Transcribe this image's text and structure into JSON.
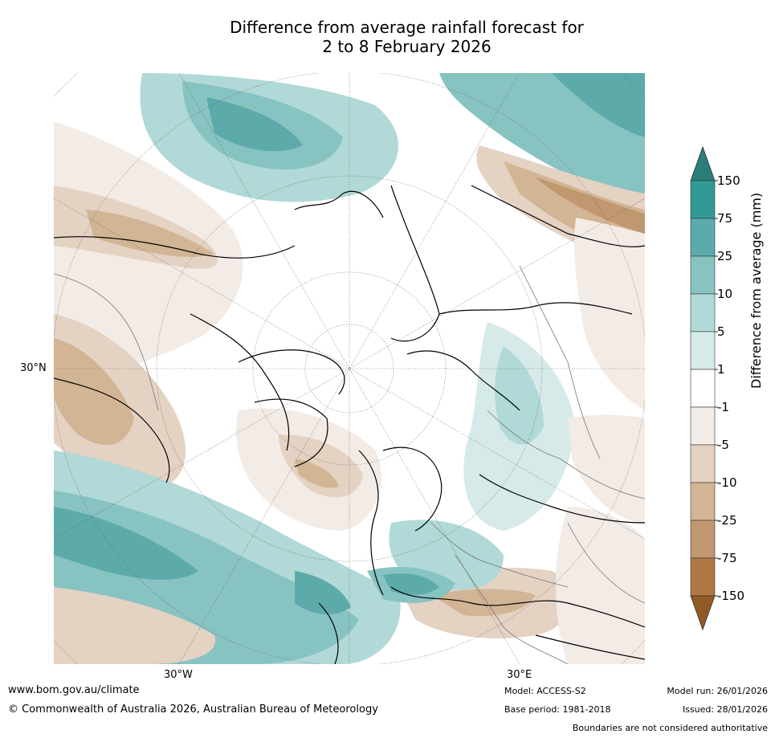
{
  "title_line1": "Difference from average rainfall forecast for",
  "title_line2": "2 to 8 February 2026",
  "map": {
    "lat_label": "30°N",
    "lon_labels": [
      "30°W",
      "30°E"
    ]
  },
  "colorbar": {
    "label": "Difference from average (mm)",
    "ticks": [
      "150",
      "75",
      "25",
      "10",
      "5",
      "1",
      "-1",
      "-5",
      "-10",
      "-25",
      "-75",
      "-150"
    ],
    "colors": [
      "#2b7d7b",
      "#319a97",
      "#5cabaa",
      "#87c3c1",
      "#b0d9d7",
      "#d6eae9",
      "#ffffff",
      "#f3ebe6",
      "#e4d2c3",
      "#d2b595",
      "#c0976f",
      "#ad7844",
      "#915a25"
    ]
  },
  "footer": {
    "website": "www.bom.gov.au/climate",
    "copyright": "© Commonwealth of Australia 2026, Australian Bureau of Meteorology",
    "model": "Model: ACCESS-S2",
    "base_period": "Base period: 1981-2018",
    "model_run": "Model run: 26/01/2026",
    "issued": "Issued: 28/01/2026",
    "boundaries": "Boundaries are not considered authoritative"
  }
}
